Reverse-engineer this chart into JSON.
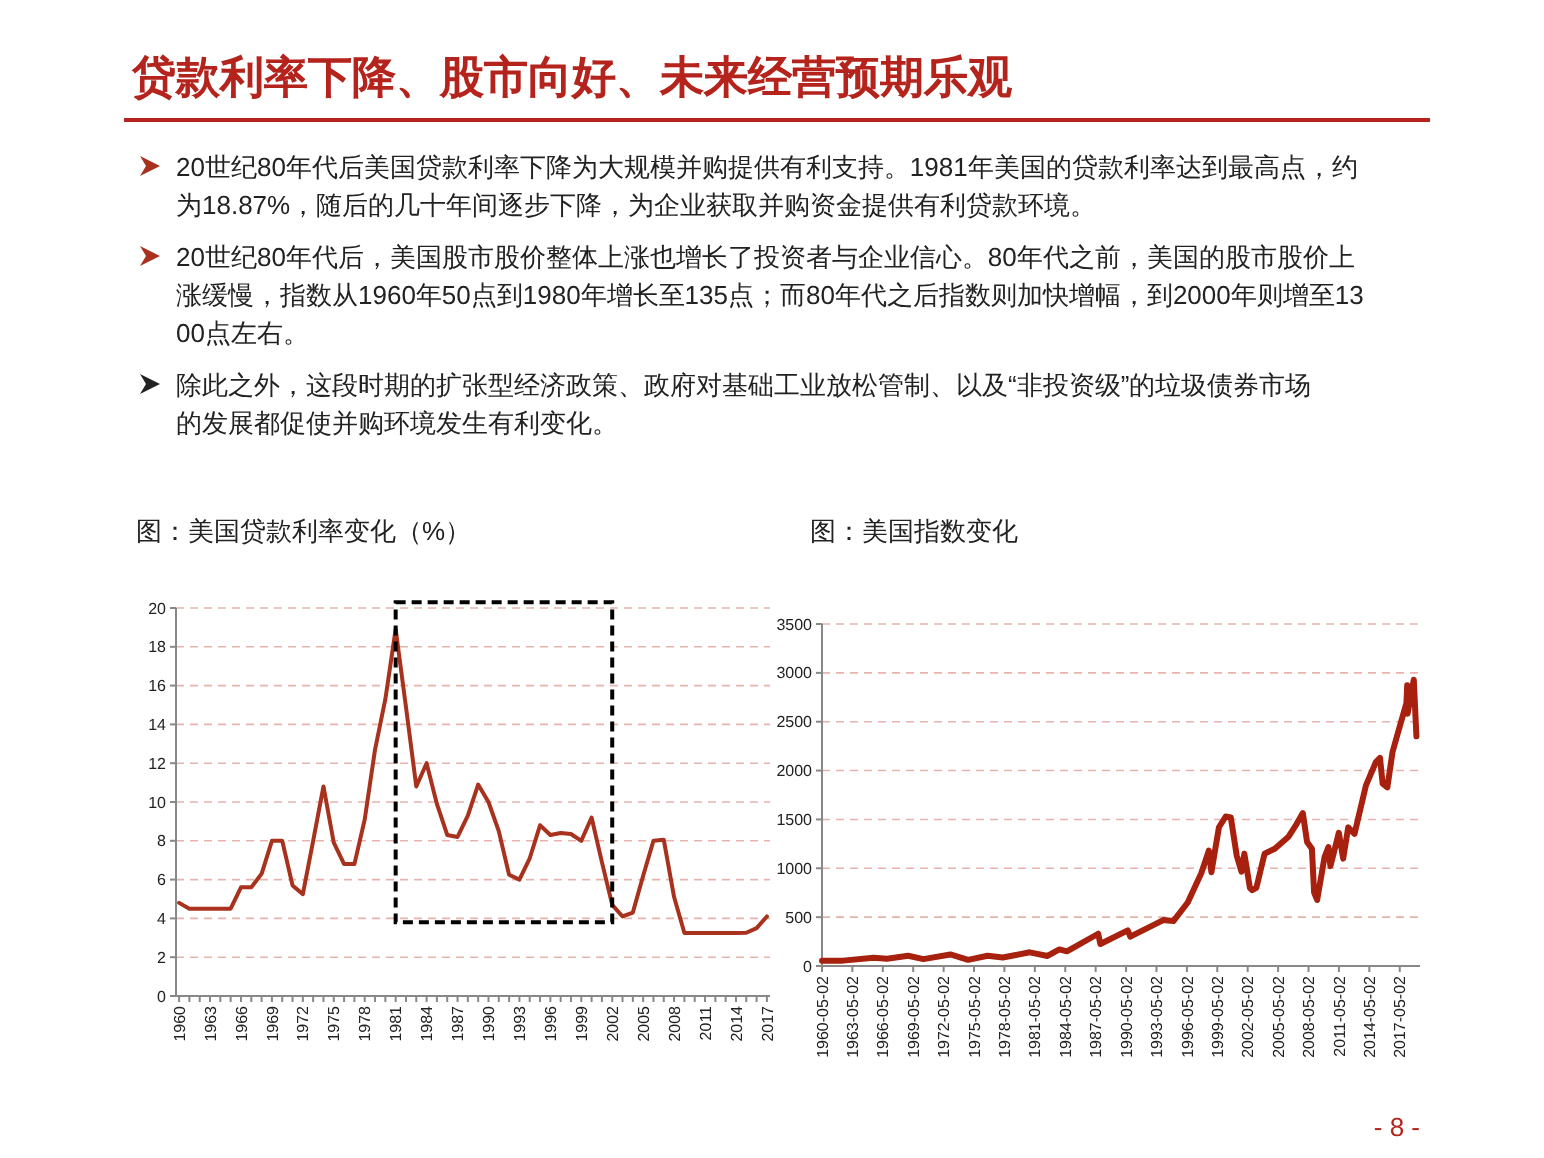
{
  "chart_data": [
    {
      "type": "other",
      "title": "贷款利率下降、股市向好、未来经营预期乐观",
      "annotations": [
        "20世纪80年代后美国贷款利率下降为大规模并购提供有利支持。1981年美国的贷款利率达到最高点，约为18.87%，随后的几十年间逐步下降，为企业获取并购资金提供有利贷款环境。",
        "20世纪80年代后，美国股市股价整体上涨也增长了投资者与企业信心。80年代之前，美国的股市股价上涨缓慢，指数从1960年50点到1980年增长至135点；而80年代之后指数则加快增幅，到2000年则增至1300点左右。",
        "除此之外，这段时期的扩张型经济政策、政府对基础工业放松管制、以及“非投资级”的垃圾债券市场的发展都促使并购环境发生有利变化。",
        "- 8 -"
      ]
    },
    {
      "type": "line",
      "title": "图：美国贷款利率变化（%）",
      "color": "#a8321e",
      "grid": "y",
      "ylim": [
        0,
        20
      ],
      "yticks": [
        0,
        2,
        4,
        6,
        8,
        10,
        12,
        14,
        16,
        18,
        20
      ],
      "categories": [
        "1960",
        null,
        null,
        "1963",
        null,
        null,
        "1966",
        null,
        null,
        "1969",
        null,
        null,
        "1972",
        null,
        null,
        "1975",
        null,
        null,
        "1978",
        null,
        null,
        "1981",
        null,
        null,
        "1984",
        null,
        null,
        "1987",
        null,
        null,
        "1990",
        null,
        null,
        "1993",
        null,
        null,
        "1996",
        null,
        null,
        "1999",
        null,
        null,
        "2002",
        null,
        null,
        "2005",
        null,
        null,
        "2008",
        null,
        null,
        "2011",
        null,
        null,
        "2014",
        null,
        null,
        "2017"
      ],
      "values": [
        4.8,
        4.5,
        4.5,
        4.5,
        4.5,
        4.5,
        5.6,
        5.6,
        6.3,
        8.0,
        8.0,
        5.7,
        5.25,
        8.0,
        10.8,
        7.9,
        6.8,
        6.8,
        9.1,
        12.7,
        15.3,
        18.9,
        14.9,
        10.8,
        12.0,
        9.9,
        8.3,
        8.2,
        9.3,
        10.9,
        10.0,
        8.5,
        6.25,
        6.0,
        7.1,
        8.8,
        8.3,
        8.4,
        8.35,
        8.0,
        9.2,
        6.9,
        4.7,
        4.1,
        4.3,
        6.2,
        8.0,
        8.05,
        5.1,
        3.25,
        3.25,
        3.25,
        3.25,
        3.25,
        3.25,
        3.26,
        3.5,
        4.1
      ]
    },
    {
      "type": "line",
      "title": "图：美国指数变化",
      "color": "#a8200e",
      "grid": "y",
      "ylim": [
        0,
        3500
      ],
      "yticks": [
        0,
        500,
        1000,
        1500,
        2000,
        2500,
        3000,
        3500
      ],
      "xlim": [
        "1960-05-02",
        "2019-05-02"
      ],
      "xticks": [
        "1960-05-02",
        "1963-05-02",
        "1966-05-02",
        "1969-05-02",
        "1972-05-02",
        "1975-05-02",
        "1978-05-02",
        "1981-05-02",
        "1984-05-02",
        "1987-05-02",
        "1990-05-02",
        "1993-05-02",
        "1996-05-02",
        "1999-05-02",
        "2002-05-02",
        "2005-05-02",
        "2008-05-02",
        "2011-05-02",
        "2014-05-02",
        "2017-05-02"
      ],
      "x": [
        "1960-05-02",
        "1962-06-01",
        "1965-06-01",
        "1966-10-01",
        "1968-11-01",
        "1970-05-01",
        "1973-01-01",
        "1974-10-01",
        "1976-09-01",
        "1978-03-01",
        "1980-11-01",
        "1982-08-01",
        "1983-10-01",
        "1984-07-01",
        "1987-08-01",
        "1987-10-20",
        "1990-07-01",
        "1990-10-01",
        "1994-01-01",
        "1995-01-01",
        "1996-06-01",
        "1997-10-01",
        "1998-07-01",
        "1998-10-01",
        "1999-07-01",
        "2000-03-01",
        "2000-09-01",
        "2001-04-01",
        "2001-09-20",
        "2002-01-01",
        "2002-07-20",
        "2002-10-10",
        "2003-03-10",
        "2004-01-01",
        "2005-01-01",
        "2006-05-01",
        "2007-02-20",
        "2007-10-10",
        "2008-03-10",
        "2008-09-01",
        "2008-11-20",
        "2009-03-09",
        "2009-12-01",
        "2010-04-20",
        "2010-07-01",
        "2011-04-29",
        "2011-10-03",
        "2012-04-02",
        "2012-11-15",
        "2013-12-31",
        "2014-12-29",
        "2015-05-21",
        "2015-08-25",
        "2016-02-11",
        "2016-08-15",
        "2017-03-01",
        "2017-12-29",
        "2018-01-26",
        "2018-02-08",
        "2018-09-20",
        "2018-12-24"
      ],
      "values": [
        55,
        55,
        85,
        75,
        105,
        70,
        118,
        63,
        105,
        87,
        140,
        103,
        170,
        150,
        330,
        225,
        365,
        300,
        470,
        460,
        650,
        950,
        1180,
        960,
        1420,
        1530,
        1520,
        1130,
        965,
        1150,
        800,
        776,
        800,
        1150,
        1200,
        1320,
        1450,
        1565,
        1270,
        1200,
        750,
        676,
        1115,
        1217,
        1022,
        1363,
        1099,
        1419,
        1353,
        1848,
        2090,
        2130,
        1867,
        1829,
        2190,
        2390,
        2690,
        2873,
        2581,
        2930,
        2351
      ]
    }
  ]
}
